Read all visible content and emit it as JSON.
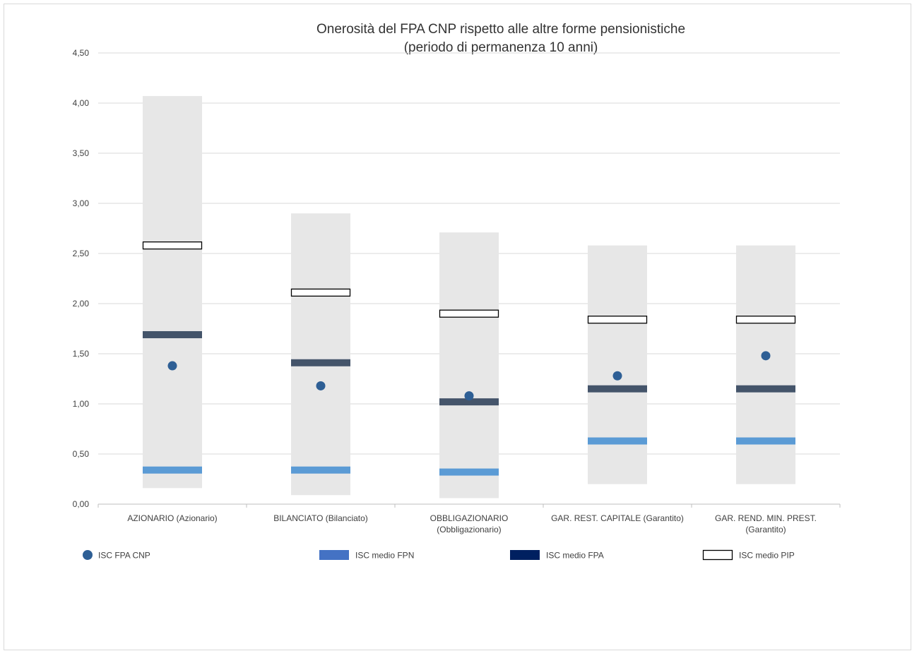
{
  "chart_data": {
    "type": "bar",
    "title": "Onerosità del FPA CNP rispetto alle altre forme pensionistiche",
    "subtitle": "(periodo di permanenza 10 anni)",
    "xlabel": "",
    "ylabel": "",
    "ylim": [
      0,
      4.5
    ],
    "yticks": [
      "0,00",
      "0,50",
      "1,00",
      "1,50",
      "2,00",
      "2,50",
      "3,00",
      "3,50",
      "4,00",
      "4,50"
    ],
    "grid": true,
    "legend_position": "bottom",
    "categories": [
      [
        "AZIONARIO (Azionario)"
      ],
      [
        "BILANCIATO (Bilanciato)"
      ],
      [
        "OBBLIGAZIONARIO",
        "(Obbligazionario)"
      ],
      [
        "GAR. REST. CAPITALE (Garantito)"
      ],
      [
        "GAR. REND. MIN. PREST.",
        "(Garantito)"
      ]
    ],
    "range": {
      "min": [
        0.16,
        0.09,
        0.06,
        0.2,
        0.2
      ],
      "max": [
        4.07,
        2.9,
        2.71,
        2.58,
        2.58
      ]
    },
    "series": [
      {
        "name": "ISC FPA CNP",
        "marker": "dot",
        "color": "#2e5f95",
        "values": [
          1.38,
          1.18,
          1.08,
          1.28,
          1.48
        ]
      },
      {
        "name": "ISC medio FPN",
        "marker": "dash",
        "color": "#5b9bd5",
        "values": [
          0.34,
          0.34,
          0.32,
          0.63,
          0.63
        ]
      },
      {
        "name": "ISC medio FPA",
        "marker": "dash",
        "color": "#44546a",
        "values": [
          1.69,
          1.41,
          1.02,
          1.15,
          1.15
        ]
      },
      {
        "name": "ISC medio PIP",
        "marker": "outline",
        "color": "#000000",
        "values": [
          2.58,
          2.11,
          1.9,
          1.84,
          1.84
        ]
      }
    ],
    "legend": [
      {
        "name": "ISC FPA CNP",
        "color": "#2e5f95",
        "marker": "dot"
      },
      {
        "name": "ISC medio FPN",
        "color": "#4472c4",
        "marker": "rect"
      },
      {
        "name": "ISC medio FPA",
        "color": "#002060",
        "marker": "rect"
      },
      {
        "name": "ISC medio PIP",
        "color": "#ffffff",
        "marker": "outline"
      }
    ],
    "colors": {
      "range": "#e7e7e7",
      "grid": "#d9d9d9"
    }
  }
}
